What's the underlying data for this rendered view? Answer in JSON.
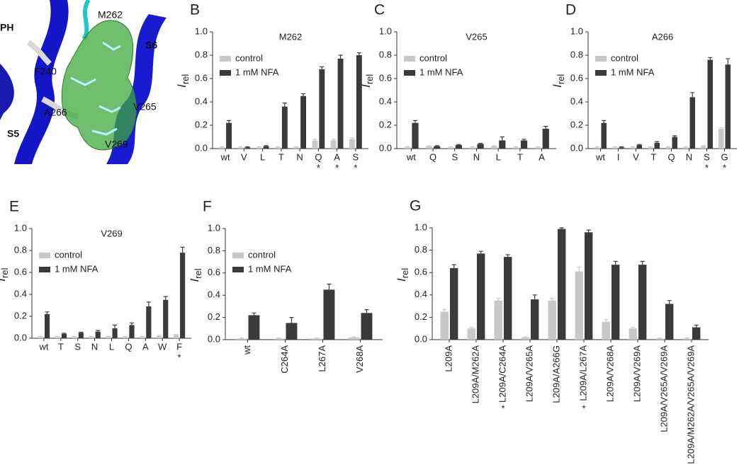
{
  "image_panel": {
    "panel": "A",
    "labels": [
      "PH",
      "M262",
      "S6",
      "F240",
      "A266",
      "V265",
      "V269",
      "S5"
    ]
  },
  "chart_data": [
    {
      "type": "bar",
      "panel": "B",
      "title": "M262",
      "y_label": {
        "main": "I",
        "sub": "rel"
      },
      "categories": [
        "wt",
        "V",
        "L",
        "T",
        "N",
        "Q",
        "A",
        "S"
      ],
      "asterisks": [
        null,
        null,
        null,
        null,
        null,
        "*",
        "*",
        "*"
      ],
      "series": [
        {
          "name": "control",
          "color": "#c8c8c8",
          "values": [
            0.01,
            0.01,
            0.01,
            0.01,
            0.01,
            0.07,
            0.07,
            0.08
          ],
          "errors": [
            0.005,
            0.005,
            0.005,
            0.005,
            0.005,
            0.01,
            0.01,
            0.01
          ]
        },
        {
          "name": "1 mM NFA",
          "color": "#3a3a3a",
          "values": [
            0.22,
            0.01,
            0.02,
            0.36,
            0.45,
            0.68,
            0.77,
            0.8
          ],
          "errors": [
            0.02,
            0.005,
            0.005,
            0.03,
            0.02,
            0.02,
            0.03,
            0.02
          ]
        }
      ],
      "ylim": [
        0,
        1
      ],
      "yticks": [
        {
          "value": 0,
          "label": "0.0"
        },
        0.2,
        0.4,
        0.6,
        0.8,
        {
          "value": 1,
          "label": "1.0"
        }
      ],
      "legend": "upper left"
    },
    {
      "type": "bar",
      "panel": "C",
      "title": "V265",
      "y_label": {
        "main": "I",
        "sub": "rel"
      },
      "categories": [
        "wt",
        "Q",
        "S",
        "N",
        "L",
        "T",
        "A"
      ],
      "asterisks": [
        null,
        null,
        null,
        null,
        null,
        null,
        null
      ],
      "series": [
        {
          "name": "control",
          "color": "#c8c8c8",
          "values": [
            0.01,
            0.02,
            0.01,
            0.01,
            0.02,
            0.01,
            0.01
          ],
          "errors": [
            0.005,
            0.005,
            0.005,
            0.005,
            0.005,
            0.005,
            0.005
          ]
        },
        {
          "name": "1 mM NFA",
          "color": "#3a3a3a",
          "values": [
            0.22,
            0.02,
            0.03,
            0.04,
            0.07,
            0.07,
            0.17
          ],
          "errors": [
            0.02,
            0.005,
            0.005,
            0.005,
            0.03,
            0.01,
            0.02
          ]
        }
      ],
      "ylim": [
        0,
        1
      ],
      "yticks": [
        {
          "value": 0,
          "label": "0.0"
        },
        0.2,
        0.4,
        0.6,
        0.8,
        {
          "value": 1,
          "label": "1.0"
        }
      ],
      "legend": "upper left"
    },
    {
      "type": "bar",
      "panel": "D",
      "title": "A266",
      "y_label": {
        "main": "I",
        "sub": "rel"
      },
      "categories": [
        "wt",
        "I",
        "V",
        "T",
        "Q",
        "N",
        "S",
        "G"
      ],
      "asterisks": [
        null,
        null,
        null,
        null,
        null,
        null,
        "*",
        "*"
      ],
      "series": [
        {
          "name": "control",
          "color": "#c8c8c8",
          "values": [
            0.01,
            0.01,
            0.01,
            0.01,
            0.01,
            0.01,
            0.02,
            0.17
          ],
          "errors": [
            0.005,
            0.005,
            0.005,
            0.005,
            0.005,
            0.005,
            0.005,
            0.01
          ]
        },
        {
          "name": "1 mM NFA",
          "color": "#3a3a3a",
          "values": [
            0.22,
            0.01,
            0.03,
            0.05,
            0.1,
            0.44,
            0.76,
            0.72
          ],
          "errors": [
            0.02,
            0.005,
            0.005,
            0.01,
            0.01,
            0.04,
            0.02,
            0.05
          ]
        }
      ],
      "ylim": [
        0,
        1
      ],
      "yticks": [
        {
          "value": 0,
          "label": "0.0"
        },
        0.2,
        0.4,
        0.6,
        0.8,
        {
          "value": 1,
          "label": "1.0"
        }
      ],
      "legend": "upper left"
    },
    {
      "type": "bar",
      "panel": "E",
      "title": "V269",
      "y_label": {
        "main": "I",
        "sub": "rel"
      },
      "categories": [
        "wt",
        "T",
        "S",
        "N",
        "L",
        "Q",
        "A",
        "W",
        "F"
      ],
      "asterisks": [
        null,
        null,
        null,
        null,
        null,
        null,
        null,
        null,
        "*"
      ],
      "series": [
        {
          "name": "control",
          "color": "#c8c8c8",
          "values": [
            0.01,
            0.01,
            0.01,
            0.01,
            0.01,
            0.01,
            0.01,
            0.02,
            0.03
          ],
          "errors": [
            0.005,
            0.005,
            0.005,
            0.005,
            0.005,
            0.005,
            0.005,
            0.005,
            0.005
          ]
        },
        {
          "name": "1 mM NFA",
          "color": "#3a3a3a",
          "values": [
            0.22,
            0.04,
            0.05,
            0.06,
            0.09,
            0.12,
            0.29,
            0.35,
            0.78
          ],
          "errors": [
            0.02,
            0.005,
            0.005,
            0.01,
            0.03,
            0.02,
            0.04,
            0.03,
            0.05
          ]
        }
      ],
      "ylim": [
        0,
        1
      ],
      "yticks": [
        {
          "value": 0,
          "label": "0.0"
        },
        0.2,
        0.4,
        0.6,
        0.8,
        {
          "value": 1,
          "label": "1.0"
        }
      ],
      "legend": "upper left"
    },
    {
      "type": "bar",
      "panel": "F",
      "y_label": {
        "main": "I",
        "sub": "rel"
      },
      "categories": [
        "wt",
        "C264A",
        "L267A",
        "V268A"
      ],
      "asterisks": [
        null,
        null,
        null,
        null
      ],
      "series": [
        {
          "name": "control",
          "color": "#c8c8c8",
          "values": [
            0.01,
            0.01,
            0.01,
            0.02
          ],
          "errors": [
            0.005,
            0.005,
            0.005,
            0.005
          ]
        },
        {
          "name": "1 mM NFA",
          "color": "#3a3a3a",
          "values": [
            0.22,
            0.15,
            0.45,
            0.24
          ],
          "errors": [
            0.02,
            0.05,
            0.05,
            0.03
          ]
        }
      ],
      "ylim": [
        0,
        1
      ],
      "yticks": [
        {
          "value": 0,
          "label": "0.0"
        },
        0.2,
        0.4,
        0.6,
        0.8,
        {
          "value": 1,
          "label": "1.0"
        }
      ],
      "legend": "upper left"
    },
    {
      "type": "bar",
      "panel": "G",
      "y_label": {
        "main": "I",
        "sub": "rel"
      },
      "categories": [
        "L209A",
        "L209A/M262A",
        "L209A/C264A",
        "L209A/V265A",
        "L209A/A266G",
        "L209A/L267A",
        "L209A/V268A",
        "L209A/V269A",
        "L209A/V265A/V269A",
        "L209A/M262A/V265A/V269A"
      ],
      "asterisks": [
        null,
        null,
        "*",
        null,
        null,
        "*",
        null,
        null,
        null,
        null
      ],
      "series": [
        {
          "color": "#c8c8c8",
          "values": [
            0.25,
            0.1,
            0.35,
            0.02,
            0.35,
            0.61,
            0.16,
            0.1,
            0.01,
            0.01
          ],
          "errors": [
            0.02,
            0.01,
            0.02,
            0.005,
            0.02,
            0.04,
            0.02,
            0.01,
            0.005,
            0.005
          ]
        },
        {
          "color": "#3a3a3a",
          "values": [
            0.64,
            0.77,
            0.74,
            0.36,
            0.99,
            0.96,
            0.67,
            0.67,
            0.32,
            0.11
          ],
          "errors": [
            0.03,
            0.02,
            0.02,
            0.04,
            0.01,
            0.02,
            0.03,
            0.03,
            0.03,
            0.02
          ]
        }
      ],
      "ylim": [
        0,
        1
      ],
      "yticks": [
        {
          "value": 0,
          "label": "0.0"
        },
        0.2,
        0.4,
        0.6,
        0.8,
        {
          "value": 1,
          "label": "1.0"
        }
      ],
      "legend": null
    }
  ]
}
